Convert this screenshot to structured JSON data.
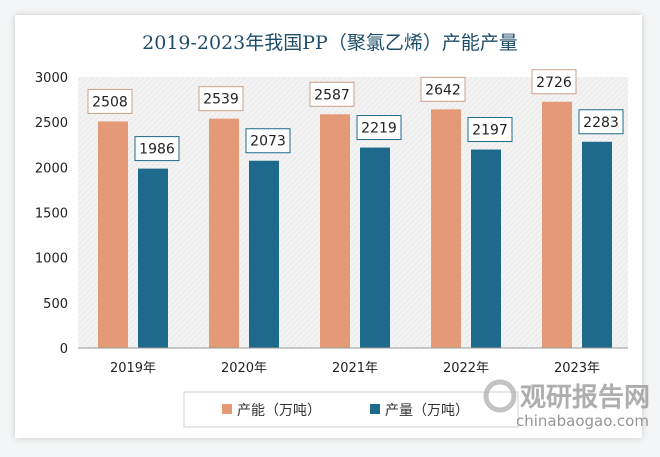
{
  "chart_data": {
    "type": "bar",
    "title": "2019-2023年我国PP（聚氯乙烯）产能产量",
    "categories": [
      "2019年",
      "2020年",
      "2021年",
      "2022年",
      "2023年"
    ],
    "series": [
      {
        "name": "产能（万吨）",
        "color": "#e49a76",
        "values": [
          2508,
          2539,
          2587,
          2642,
          2726
        ]
      },
      {
        "name": "产量（万吨）",
        "color": "#1e6a8c",
        "values": [
          1986,
          2073,
          2219,
          2197,
          2283
        ]
      }
    ],
    "ylim": [
      0,
      3000
    ],
    "yticks": [
      "0",
      "500",
      "1000",
      "1500",
      "2000",
      "2500",
      "3000"
    ],
    "xlabel": "",
    "ylabel": "",
    "grid": false,
    "legend": "bottom",
    "data_labels": true
  },
  "watermark": {
    "brand": "观研报告网",
    "site": "chinabaogao.com"
  }
}
